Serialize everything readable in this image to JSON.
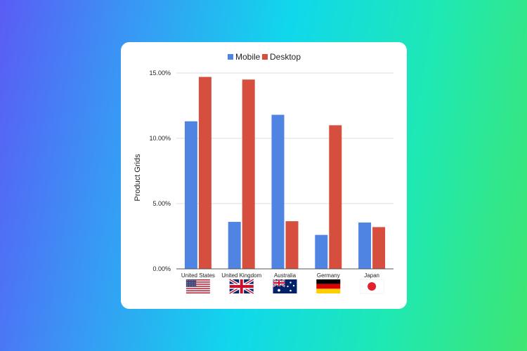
{
  "chart_data": {
    "type": "bar",
    "title": "",
    "ylabel": "Product Grids",
    "xlabel": "",
    "categories": [
      "United States",
      "United Kingdom",
      "Australia",
      "Germany",
      "Japan"
    ],
    "category_flags": [
      "us-flag",
      "uk-flag",
      "australia-flag",
      "germany-flag",
      "japan-flag"
    ],
    "series": [
      {
        "name": "Mobile",
        "color": "#4f84e2",
        "values": [
          11.3,
          3.6,
          11.8,
          2.6,
          3.55
        ]
      },
      {
        "name": "Desktop",
        "color": "#d64f3e",
        "values": [
          14.7,
          14.5,
          3.65,
          11.0,
          3.2
        ]
      }
    ],
    "yticks": [
      "0.00%",
      "5.00%",
      "10.00%",
      "15.00%"
    ],
    "ytick_values": [
      0,
      5,
      10,
      15
    ],
    "ylim": [
      0,
      15
    ],
    "grid": true,
    "legend": "top-center"
  }
}
